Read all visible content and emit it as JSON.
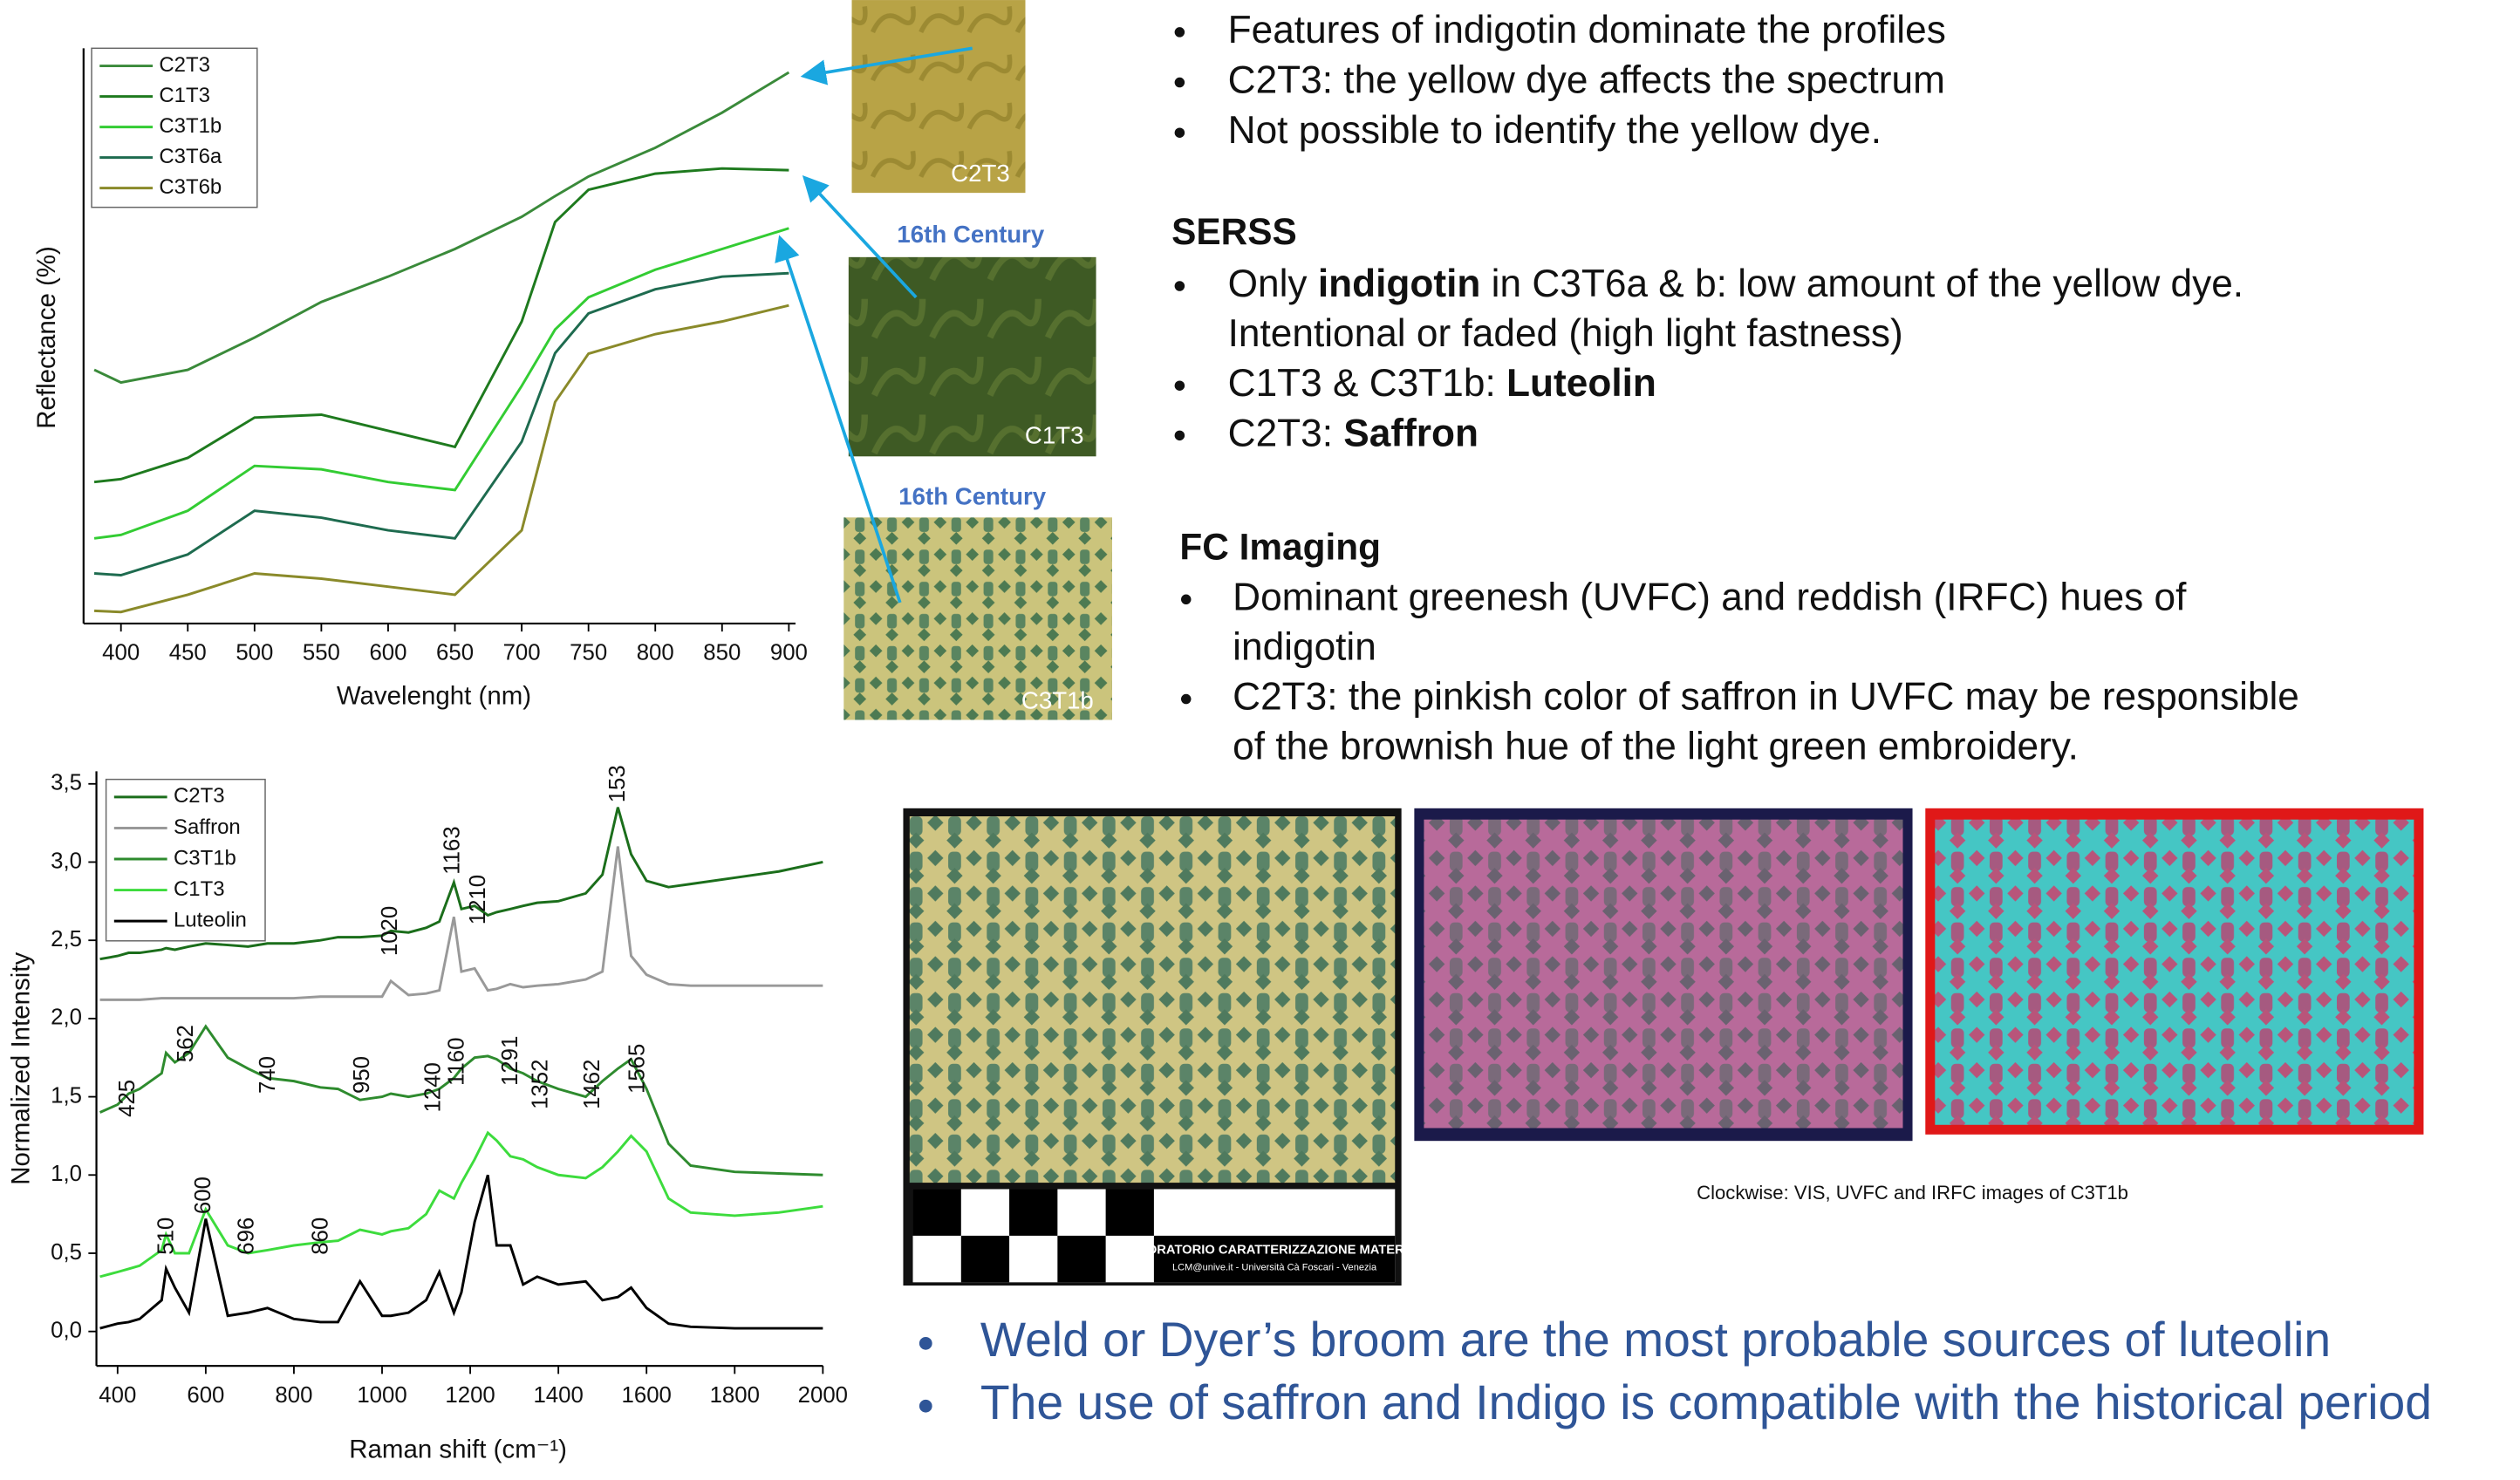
{
  "chart_data": [
    {
      "type": "line",
      "xlabel": "Wavelenght (nm)",
      "ylabel": "Reflectance (%)",
      "x": [
        380,
        400,
        450,
        500,
        550,
        600,
        650,
        700,
        725,
        750,
        800,
        850,
        900
      ],
      "xlim": [
        372,
        905
      ],
      "xticks": [
        400,
        450,
        500,
        550,
        600,
        650,
        700,
        750,
        800,
        850,
        900
      ],
      "ylim": [
        0,
        100
      ],
      "legend": "top-left",
      "series": [
        {
          "name": "C2T3",
          "color": "#3a8a3a",
          "values": [
            44.1,
            41.9,
            44.1,
            49.7,
            55.9,
            60.3,
            65.1,
            70.7,
            74.3,
            77.7,
            82.7,
            88.8,
            95.8
          ]
        },
        {
          "name": "C1T3",
          "color": "#1e7a1e",
          "values": [
            24.6,
            25.1,
            28.8,
            35.8,
            36.3,
            33.5,
            30.7,
            52.5,
            69.8,
            75.4,
            78.2,
            79.1,
            78.8
          ]
        },
        {
          "name": "C3T1b",
          "color": "#33cc33",
          "values": [
            14.8,
            15.4,
            19.6,
            27.4,
            26.8,
            24.6,
            23.2,
            41.3,
            51.1,
            56.7,
            61.5,
            65.1,
            68.7
          ]
        },
        {
          "name": "C3T6a",
          "color": "#1e6b4f",
          "values": [
            8.7,
            8.4,
            12.0,
            19.6,
            18.4,
            16.2,
            14.8,
            31.6,
            47.0,
            53.9,
            58.1,
            60.3,
            60.9
          ]
        },
        {
          "name": "C3T6b",
          "color": "#8a8a2a",
          "values": [
            2.2,
            2.0,
            5.0,
            8.7,
            7.8,
            6.4,
            5.0,
            16.2,
            38.5,
            46.9,
            50.3,
            52.5,
            55.3
          ]
        }
      ]
    },
    {
      "type": "line",
      "xlabel": "Raman shift (cm⁻¹)",
      "ylabel": "Normalized Intensity",
      "x": [
        360,
        400,
        425,
        450,
        500,
        510,
        530,
        562,
        600,
        650,
        696,
        740,
        800,
        860,
        900,
        950,
        1000,
        1020,
        1060,
        1100,
        1130,
        1163,
        1180,
        1210,
        1240,
        1260,
        1291,
        1320,
        1352,
        1400,
        1462,
        1500,
        1535,
        1565,
        1600,
        1650,
        1700,
        1800,
        1900,
        2000
      ],
      "xlim": [
        352,
        2000
      ],
      "xticks": [
        400,
        600,
        800,
        1000,
        1200,
        1400,
        1600,
        1800,
        2000
      ],
      "ylim": [
        -0.22,
        3.58
      ],
      "yticks": [
        {
          "value": 0,
          "label": "0,0"
        },
        {
          "value": 0.5,
          "label": "0,5"
        },
        {
          "value": 1,
          "label": "1,0"
        },
        {
          "value": 1.5,
          "label": "1,5"
        },
        {
          "value": 2,
          "label": "2,0"
        },
        {
          "value": 2.5,
          "label": "2,5"
        },
        {
          "value": 3,
          "label": "3,0"
        },
        {
          "value": 3.5,
          "label": "3,5"
        }
      ],
      "legend": "top-left",
      "series": [
        {
          "name": "C2T3",
          "color": "#1b6e1b",
          "values": [
            2.38,
            2.4,
            2.42,
            2.42,
            2.44,
            2.45,
            2.44,
            2.46,
            2.48,
            2.47,
            2.46,
            2.48,
            2.48,
            2.5,
            2.52,
            2.52,
            2.53,
            2.56,
            2.55,
            2.58,
            2.62,
            2.87,
            2.7,
            2.72,
            2.66,
            2.68,
            2.7,
            2.72,
            2.74,
            2.75,
            2.8,
            2.92,
            3.35,
            3.05,
            2.88,
            2.84,
            2.86,
            2.9,
            2.94,
            3.0
          ]
        },
        {
          "name": "Saffron",
          "color": "#999999",
          "values": [
            2.12,
            2.12,
            2.12,
            2.12,
            2.13,
            2.13,
            2.13,
            2.13,
            2.13,
            2.13,
            2.13,
            2.13,
            2.13,
            2.14,
            2.14,
            2.14,
            2.14,
            2.24,
            2.15,
            2.16,
            2.18,
            2.65,
            2.3,
            2.32,
            2.18,
            2.19,
            2.22,
            2.2,
            2.21,
            2.22,
            2.25,
            2.3,
            3.1,
            2.4,
            2.28,
            2.22,
            2.21,
            2.21,
            2.21,
            2.21
          ]
        },
        {
          "name": "C3T1b",
          "color": "#2e8b2e",
          "values": [
            1.4,
            1.45,
            1.52,
            1.55,
            1.65,
            1.78,
            1.72,
            1.78,
            1.95,
            1.75,
            1.68,
            1.62,
            1.6,
            1.56,
            1.55,
            1.48,
            1.5,
            1.52,
            1.5,
            1.52,
            1.55,
            1.62,
            1.68,
            1.75,
            1.76,
            1.74,
            1.68,
            1.65,
            1.6,
            1.55,
            1.5,
            1.6,
            1.68,
            1.74,
            1.55,
            1.2,
            1.06,
            1.02,
            1.01,
            1.0
          ]
        },
        {
          "name": "C1T3",
          "color": "#3ddc3d",
          "values": [
            0.35,
            0.38,
            0.4,
            0.42,
            0.52,
            0.62,
            0.5,
            0.5,
            0.78,
            0.55,
            0.5,
            0.52,
            0.55,
            0.57,
            0.58,
            0.65,
            0.62,
            0.64,
            0.66,
            0.75,
            0.9,
            0.85,
            0.95,
            1.1,
            1.27,
            1.22,
            1.12,
            1.1,
            1.05,
            1.0,
            0.98,
            1.05,
            1.15,
            1.25,
            1.15,
            0.85,
            0.76,
            0.74,
            0.76,
            0.8
          ]
        },
        {
          "name": "Luteolin",
          "color": "#000000",
          "values": [
            0.02,
            0.05,
            0.06,
            0.08,
            0.2,
            0.4,
            0.28,
            0.12,
            0.72,
            0.1,
            0.12,
            0.15,
            0.08,
            0.06,
            0.06,
            0.32,
            0.1,
            0.1,
            0.12,
            0.2,
            0.38,
            0.12,
            0.25,
            0.7,
            1.0,
            0.55,
            0.55,
            0.3,
            0.35,
            0.3,
            0.32,
            0.2,
            0.22,
            0.28,
            0.15,
            0.05,
            0.03,
            0.02,
            0.02,
            0.02
          ]
        }
      ],
      "annotations": [
        {
          "text": "1020",
          "x": 1020,
          "y": 2.4
        },
        {
          "text": "1163",
          "x": 1162,
          "y": 2.92
        },
        {
          "text": "1210",
          "x": 1220,
          "y": 2.6
        },
        {
          "text": "153",
          "x": 1537,
          "y": 3.38
        },
        {
          "text": "425",
          "x": 425,
          "y": 1.37
        },
        {
          "text": "562",
          "x": 557,
          "y": 1.72
        },
        {
          "text": "740",
          "x": 743,
          "y": 1.52
        },
        {
          "text": "950",
          "x": 957,
          "y": 1.52
        },
        {
          "text": "1240",
          "x": 1118,
          "y": 1.4
        },
        {
          "text": "1160",
          "x": 1172,
          "y": 1.57
        },
        {
          "text": "1291",
          "x": 1293,
          "y": 1.57
        },
        {
          "text": "1352",
          "x": 1362,
          "y": 1.42
        },
        {
          "text": "1462",
          "x": 1479,
          "y": 1.42
        },
        {
          "text": "1565",
          "x": 1581,
          "y": 1.52
        },
        {
          "text": "510",
          "x": 513,
          "y": 0.49
        },
        {
          "text": "600",
          "x": 597,
          "y": 0.75
        },
        {
          "text": "696",
          "x": 695,
          "y": 0.49
        },
        {
          "text": "860",
          "x": 863,
          "y": 0.49
        }
      ]
    }
  ],
  "swatches": [
    {
      "label": "C2T3"
    },
    {
      "caption": "16th Century",
      "label": "C1T3"
    },
    {
      "caption": "16th Century",
      "label": "C3T1b"
    }
  ],
  "notes": {
    "intro": [
      [
        [
          "Features of indigotin dominate the profiles"
        ]
      ],
      [
        [
          "C2T3: the yellow dye affects the spectrum"
        ]
      ],
      [
        [
          "Not possible to identify the yellow dye."
        ]
      ]
    ],
    "serss": {
      "title": "SERSS",
      "bullets": [
        [
          [
            "Only ",
            "indigotin",
            " in C3T6a & b: low amount of the yellow dye."
          ],
          [
            "Intentional or faded (high light fastness)"
          ]
        ],
        [
          [
            "C1T3 & C3T1b: ",
            "Luteolin"
          ]
        ],
        [
          [
            "C2T3: ",
            "Saffron"
          ]
        ]
      ]
    },
    "fc": {
      "title": "FC Imaging",
      "bullets": [
        [
          [
            "Dominant greenesh (UVFC) and reddish (IRFC) hues of"
          ],
          [
            "indigotin"
          ]
        ],
        [
          [
            "C2T3: the pinkish color of saffron in UVFC may be responsible"
          ],
          [
            "of the brownish hue of the light green embroidery."
          ]
        ]
      ]
    }
  },
  "photos": {
    "caption": "Clockwise: VIS, UVFC and IRFC images of C3T1b",
    "ruler_text": [
      "LABORATORIO CARATTERIZZAZIONE MATERIALI",
      "LCM@unive.it - Università Cà Foscari - Venezia"
    ]
  },
  "conclusions": [
    "Weld or Dyer’s broom are the most probable sources of luteolin",
    "The use of saffron and Indigo is compatible with the historical period"
  ]
}
